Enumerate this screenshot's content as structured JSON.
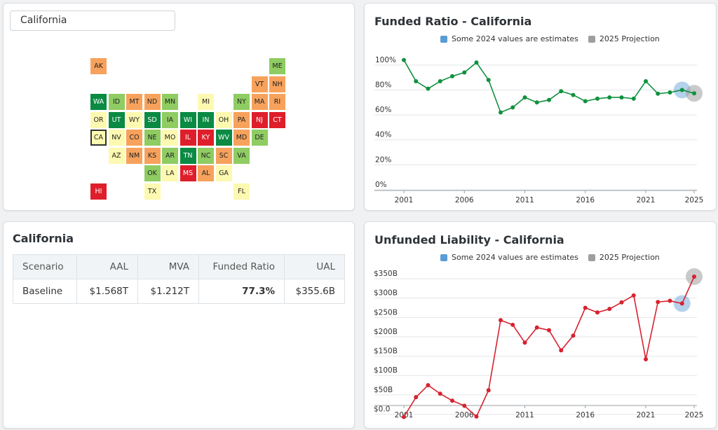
{
  "selector": {
    "value": "California"
  },
  "colors": {
    "dkgreen": "#0a8a43",
    "green": "#8fcc62",
    "yellow": "#fdf9b0",
    "orange": "#f7a25c",
    "red": "#de1f2b"
  },
  "map_tiles": [
    {
      "s": "AK",
      "c": "orange"
    },
    {
      "s": "ME",
      "c": "green"
    },
    {
      "s": "VT",
      "c": "orange"
    },
    {
      "s": "NH",
      "c": "orange"
    },
    {
      "s": "WA",
      "c": "dkgreen"
    },
    {
      "s": "ID",
      "c": "green"
    },
    {
      "s": "MT",
      "c": "orange"
    },
    {
      "s": "ND",
      "c": "orange"
    },
    {
      "s": "MN",
      "c": "green"
    },
    {
      "s": "MI",
      "c": "yellow"
    },
    {
      "s": "NY",
      "c": "green"
    },
    {
      "s": "MA",
      "c": "orange"
    },
    {
      "s": "RI",
      "c": "orange"
    },
    {
      "s": "OR",
      "c": "yellow"
    },
    {
      "s": "UT",
      "c": "dkgreen"
    },
    {
      "s": "WY",
      "c": "yellow"
    },
    {
      "s": "SD",
      "c": "dkgreen"
    },
    {
      "s": "IA",
      "c": "green"
    },
    {
      "s": "WI",
      "c": "dkgreen"
    },
    {
      "s": "IN",
      "c": "dkgreen"
    },
    {
      "s": "OH",
      "c": "yellow"
    },
    {
      "s": "PA",
      "c": "orange"
    },
    {
      "s": "NJ",
      "c": "red"
    },
    {
      "s": "CT",
      "c": "red"
    },
    {
      "s": "CA",
      "c": "yellow",
      "sel": true
    },
    {
      "s": "NV",
      "c": "yellow"
    },
    {
      "s": "CO",
      "c": "orange"
    },
    {
      "s": "NE",
      "c": "green"
    },
    {
      "s": "MO",
      "c": "yellow"
    },
    {
      "s": "IL",
      "c": "red"
    },
    {
      "s": "KY",
      "c": "red"
    },
    {
      "s": "WV",
      "c": "dkgreen"
    },
    {
      "s": "MD",
      "c": "orange"
    },
    {
      "s": "DE",
      "c": "green"
    },
    {
      "s": "AZ",
      "c": "yellow"
    },
    {
      "s": "NM",
      "c": "orange"
    },
    {
      "s": "KS",
      "c": "orange"
    },
    {
      "s": "AR",
      "c": "green"
    },
    {
      "s": "TN",
      "c": "dkgreen"
    },
    {
      "s": "NC",
      "c": "green"
    },
    {
      "s": "SC",
      "c": "orange"
    },
    {
      "s": "VA",
      "c": "green"
    },
    {
      "s": "OK",
      "c": "green"
    },
    {
      "s": "LA",
      "c": "yellow"
    },
    {
      "s": "MS",
      "c": "red"
    },
    {
      "s": "AL",
      "c": "orange"
    },
    {
      "s": "GA",
      "c": "yellow"
    },
    {
      "s": "HI",
      "c": "red"
    },
    {
      "s": "TX",
      "c": "yellow"
    },
    {
      "s": "FL",
      "c": "yellow"
    }
  ],
  "scenario_table": {
    "title": "California",
    "headers": [
      "Scenario",
      "AAL",
      "MVA",
      "Funded Ratio",
      "UAL"
    ],
    "rows": [
      [
        "Baseline",
        "$1.568T",
        "$1.212T",
        "77.3%",
        "$355.6B"
      ]
    ]
  },
  "legend": {
    "estimates": "Some 2024 values are estimates",
    "projection": "2025 Projection",
    "estimates_color": "#5b9bd5",
    "projection_color": "#9e9e9e"
  },
  "chart_data": [
    {
      "type": "line",
      "title": "Funded Ratio - California",
      "color": "#11913e",
      "x": [
        2001,
        2002,
        2003,
        2004,
        2005,
        2006,
        2007,
        2008,
        2009,
        2010,
        2011,
        2012,
        2013,
        2014,
        2015,
        2016,
        2017,
        2018,
        2019,
        2020,
        2021,
        2022,
        2023,
        2024,
        2025
      ],
      "y": [
        104,
        87,
        81,
        87,
        91,
        94,
        102,
        88,
        62,
        66,
        74,
        70,
        72,
        79,
        76,
        71,
        73,
        74,
        74,
        73,
        87,
        77,
        78,
        80,
        77.3
      ],
      "ylim": [
        0,
        110
      ],
      "yticks": [
        0,
        20,
        40,
        60,
        80,
        100
      ],
      "ytick_labels": [
        "0%",
        "20%",
        "40%",
        "60%",
        "80%",
        "100%"
      ],
      "xticks": [
        2001,
        2006,
        2011,
        2016,
        2021,
        2025
      ],
      "estimate_year": 2024,
      "projection_year": 2025
    },
    {
      "type": "line",
      "title": "Unfunded Liability - California",
      "color": "#d7222f",
      "x": [
        2001,
        2002,
        2003,
        2004,
        2005,
        2006,
        2007,
        2008,
        2009,
        2010,
        2011,
        2012,
        2013,
        2014,
        2015,
        2016,
        2017,
        2018,
        2019,
        2020,
        2021,
        2022,
        2023,
        2024,
        2025
      ],
      "y": [
        -7,
        44,
        75,
        53,
        35,
        22,
        -6,
        62,
        243,
        231,
        185,
        224,
        217,
        165,
        203,
        275,
        263,
        272,
        289,
        307,
        142,
        290,
        293,
        286,
        355.6
      ],
      "ylim": [
        -10,
        370
      ],
      "yticks": [
        0,
        50,
        100,
        150,
        200,
        250,
        300,
        350
      ],
      "ytick_labels": [
        "$0.0",
        "$50B",
        "$100B",
        "$150B",
        "$200B",
        "$250B",
        "$300B",
        "$350B"
      ],
      "xticks": [
        2001,
        2006,
        2011,
        2016,
        2021,
        2025
      ],
      "estimate_year": 2024,
      "projection_year": 2025
    }
  ]
}
